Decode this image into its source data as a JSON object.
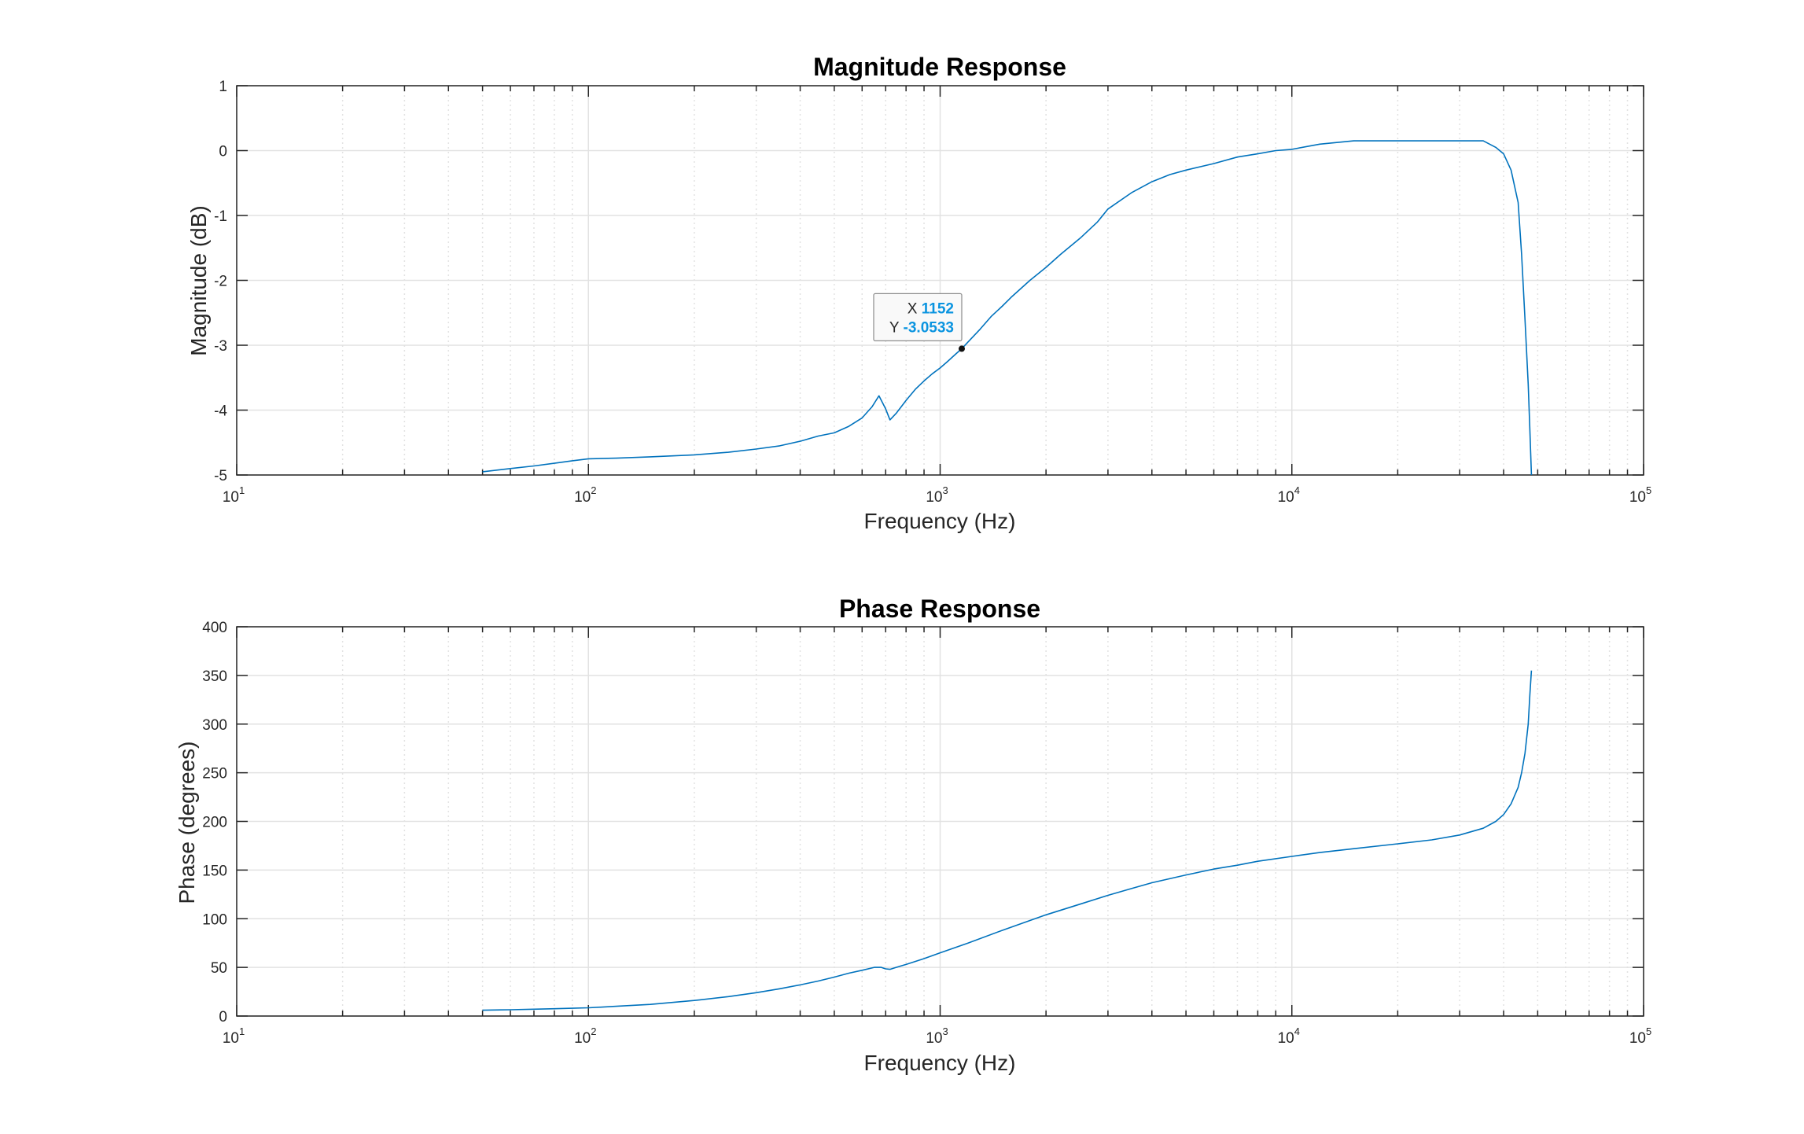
{
  "colors": {
    "series": "#0072BD",
    "datatip_value": "#0a94e0",
    "grid": "#e2e2e2",
    "axes": "#262626"
  },
  "chart_data": [
    {
      "type": "line",
      "title": "Magnitude Response",
      "xlabel": "Frequency (Hz)",
      "ylabel": "Magnitude (dB)",
      "xscale": "log",
      "xlim": [
        10,
        100000
      ],
      "ylim": [
        -5,
        1
      ],
      "yticks": [
        -5,
        -4,
        -3,
        -2,
        -1,
        0,
        1
      ],
      "xtick_labels": [
        {
          "base": "10",
          "exp": "1"
        },
        {
          "base": "10",
          "exp": "2"
        },
        {
          "base": "10",
          "exp": "3"
        },
        {
          "base": "10",
          "exp": "4"
        },
        {
          "base": "10",
          "exp": "5"
        }
      ],
      "grid": true,
      "minor_grid": true,
      "series": [
        {
          "x": [
            50,
            60,
            70,
            80,
            90,
            100,
            120,
            150,
            200,
            250,
            300,
            350,
            400,
            450,
            500,
            550,
            600,
            640,
            670,
            700,
            720,
            750,
            800,
            850,
            900,
            950,
            1000,
            1050,
            1100,
            1152,
            1200,
            1300,
            1400,
            1500,
            1600,
            1800,
            2000,
            2200,
            2500,
            2800,
            3000,
            3500,
            4000,
            4500,
            5000,
            6000,
            7000,
            8000,
            9000,
            10000,
            12000,
            15000,
            20000,
            25000,
            30000,
            35000,
            38000,
            40000,
            42000,
            44000,
            45000,
            46000,
            47000,
            47500,
            48000
          ],
          "y": [
            -4.95,
            -4.9,
            -4.86,
            -4.82,
            -4.78,
            -4.75,
            -4.74,
            -4.72,
            -4.69,
            -4.65,
            -4.6,
            -4.55,
            -4.48,
            -4.4,
            -4.35,
            -4.25,
            -4.12,
            -3.95,
            -3.78,
            -3.98,
            -4.15,
            -4.05,
            -3.85,
            -3.68,
            -3.55,
            -3.44,
            -3.35,
            -3.25,
            -3.15,
            -3.0533,
            -2.95,
            -2.75,
            -2.55,
            -2.4,
            -2.25,
            -2.0,
            -1.8,
            -1.6,
            -1.35,
            -1.1,
            -0.9,
            -0.65,
            -0.48,
            -0.37,
            -0.3,
            -0.2,
            -0.1,
            -0.05,
            0.0,
            0.02,
            0.1,
            0.15,
            0.15,
            0.15,
            0.15,
            0.15,
            0.05,
            -0.05,
            -0.3,
            -0.8,
            -1.6,
            -2.6,
            -3.6,
            -4.3,
            -5.0
          ]
        }
      ],
      "datatip": {
        "x_label": "X",
        "x_value": "1152",
        "y_label": "Y",
        "y_value": "-3.0533",
        "x": 1152,
        "y": -3.0533
      }
    },
    {
      "type": "line",
      "title": "Phase Response",
      "xlabel": "Frequency (Hz)",
      "ylabel": "Phase (degrees)",
      "xscale": "log",
      "xlim": [
        10,
        100000
      ],
      "ylim": [
        0,
        400
      ],
      "yticks": [
        0,
        50,
        100,
        150,
        200,
        250,
        300,
        350,
        400
      ],
      "xtick_labels": [
        {
          "base": "10",
          "exp": "1"
        },
        {
          "base": "10",
          "exp": "2"
        },
        {
          "base": "10",
          "exp": "3"
        },
        {
          "base": "10",
          "exp": "4"
        },
        {
          "base": "10",
          "exp": "5"
        }
      ],
      "grid": true,
      "minor_grid": true,
      "series": [
        {
          "x": [
            50,
            60,
            70,
            80,
            90,
            100,
            120,
            150,
            200,
            250,
            300,
            350,
            400,
            450,
            500,
            550,
            600,
            650,
            680,
            700,
            720,
            750,
            800,
            900,
            1000,
            1200,
            1500,
            2000,
            2500,
            3000,
            3500,
            4000,
            5000,
            6000,
            7000,
            8000,
            10000,
            12000,
            15000,
            20000,
            25000,
            30000,
            35000,
            38000,
            40000,
            42000,
            44000,
            45000,
            46000,
            47000,
            47500,
            48000
          ],
          "y": [
            6,
            6.5,
            7,
            7.5,
            8,
            8.5,
            10,
            12,
            16,
            20,
            24,
            28,
            32,
            36,
            40,
            44,
            47,
            50,
            50,
            48.5,
            48,
            50,
            53,
            59,
            65,
            75,
            88,
            104,
            115,
            124,
            131,
            137,
            145,
            151,
            155,
            159,
            164,
            168,
            172,
            177,
            181,
            186,
            193,
            200,
            207,
            218,
            235,
            250,
            270,
            300,
            330,
            355
          ]
        }
      ]
    }
  ]
}
